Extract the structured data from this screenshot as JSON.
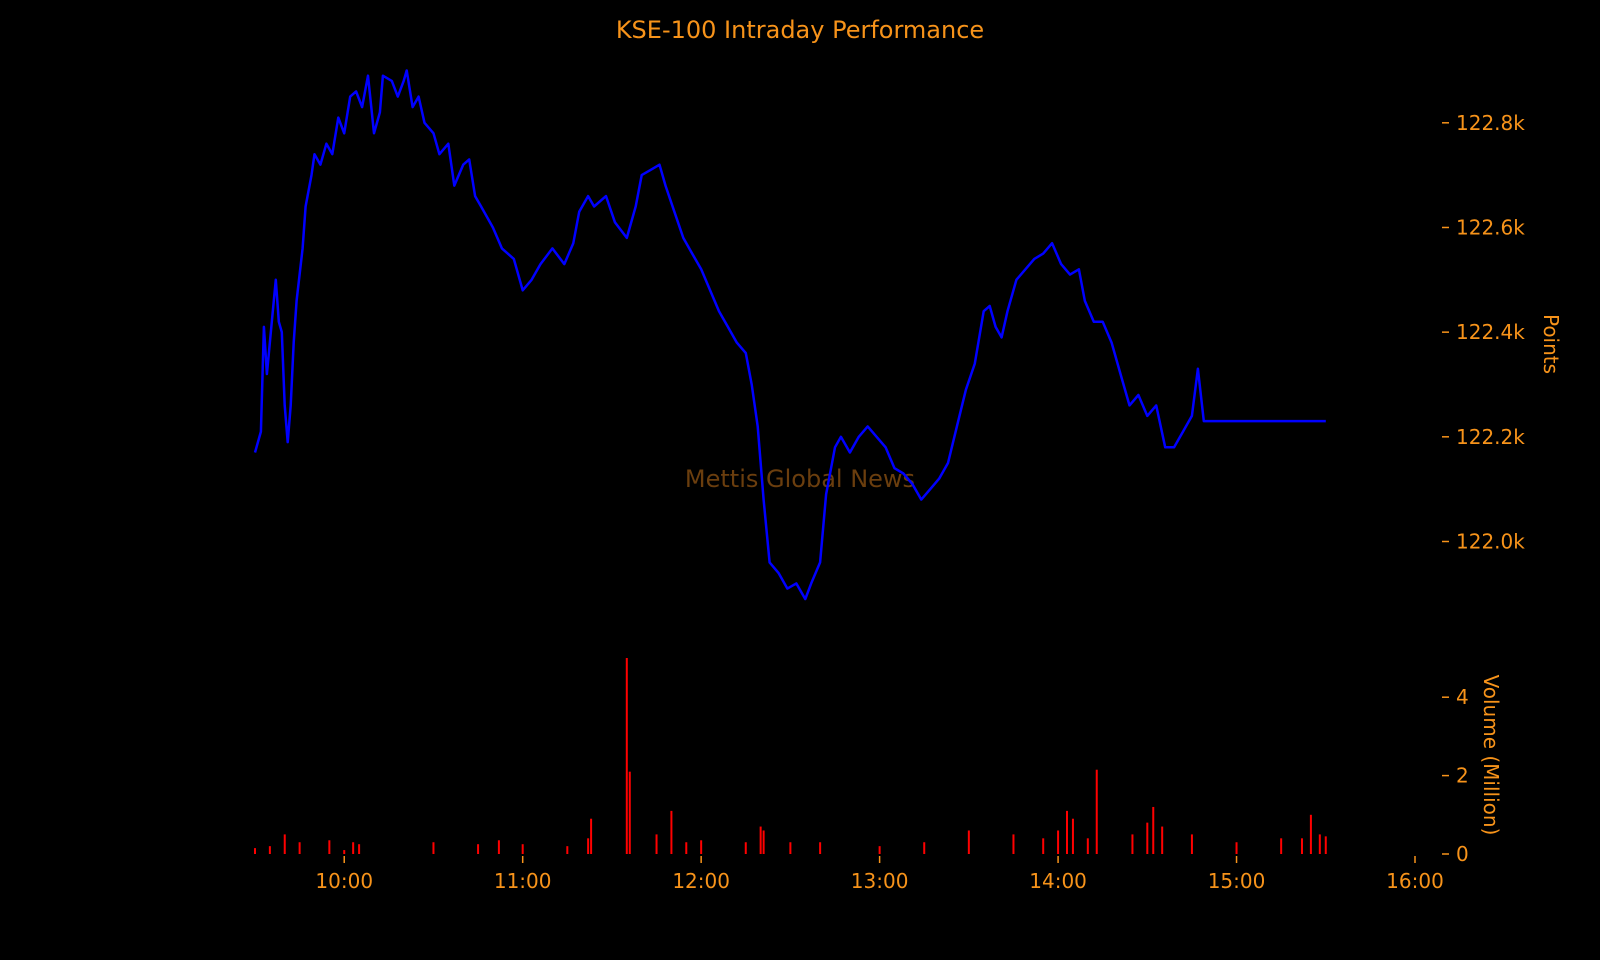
{
  "chart_data": [
    {
      "type": "line",
      "title": "KSE-100 Intraday Performance",
      "watermark": "Mettis Global News",
      "ylabel": "Points",
      "x_ticks": [
        "10:00",
        "11:00",
        "12:00",
        "13:00",
        "14:00",
        "15:00",
        "16:00"
      ],
      "xlim": [
        "09:30",
        "16:00"
      ],
      "ylim": [
        121850,
        122920
      ],
      "y_ticks": [
        122000,
        122200,
        122400,
        122600,
        122800
      ],
      "y_tick_labels": [
        "122.0k",
        "122.2k",
        "122.4k",
        "122.6k",
        "122.8k"
      ],
      "grid": false,
      "series": [
        {
          "color": "#0000ff",
          "points": [
            [
              "09:30",
              122170
            ],
            [
              "09:32",
              122210
            ],
            [
              "09:33",
              122410
            ],
            [
              "09:34",
              122320
            ],
            [
              "09:36",
              122440
            ],
            [
              "09:37",
              122500
            ],
            [
              "09:38",
              122420
            ],
            [
              "09:39",
              122400
            ],
            [
              "09:40",
              122260
            ],
            [
              "09:41",
              122190
            ],
            [
              "09:42",
              122260
            ],
            [
              "09:43",
              122380
            ],
            [
              "09:44",
              122460
            ],
            [
              "09:46",
              122560
            ],
            [
              "09:47",
              122640
            ],
            [
              "09:49",
              122700
            ],
            [
              "09:50",
              122740
            ],
            [
              "09:52",
              122720
            ],
            [
              "09:54",
              122760
            ],
            [
              "09:56",
              122740
            ],
            [
              "09:58",
              122810
            ],
            [
              "10:00",
              122780
            ],
            [
              "10:02",
              122850
            ],
            [
              "10:04",
              122860
            ],
            [
              "10:06",
              122830
            ],
            [
              "10:08",
              122890
            ],
            [
              "10:10",
              122780
            ],
            [
              "10:12",
              122820
            ],
            [
              "10:13",
              122890
            ],
            [
              "10:16",
              122880
            ],
            [
              "10:18",
              122850
            ],
            [
              "10:20",
              122880
            ],
            [
              "10:21",
              122900
            ],
            [
              "10:23",
              122830
            ],
            [
              "10:25",
              122850
            ],
            [
              "10:27",
              122800
            ],
            [
              "10:30",
              122780
            ],
            [
              "10:32",
              122740
            ],
            [
              "10:35",
              122760
            ],
            [
              "10:37",
              122680
            ],
            [
              "10:40",
              122720
            ],
            [
              "10:42",
              122730
            ],
            [
              "10:44",
              122660
            ],
            [
              "10:46",
              122640
            ],
            [
              "10:50",
              122600
            ],
            [
              "10:53",
              122560
            ],
            [
              "10:57",
              122540
            ],
            [
              "11:00",
              122480
            ],
            [
              "11:03",
              122500
            ],
            [
              "11:06",
              122530
            ],
            [
              "11:10",
              122560
            ],
            [
              "11:14",
              122530
            ],
            [
              "11:17",
              122570
            ],
            [
              "11:19",
              122630
            ],
            [
              "11:22",
              122660
            ],
            [
              "11:24",
              122640
            ],
            [
              "11:28",
              122660
            ],
            [
              "11:31",
              122610
            ],
            [
              "11:35",
              122580
            ],
            [
              "11:38",
              122640
            ],
            [
              "11:40",
              122700
            ],
            [
              "11:43",
              122710
            ],
            [
              "11:46",
              122720
            ],
            [
              "11:48",
              122680
            ],
            [
              "11:51",
              122630
            ],
            [
              "11:54",
              122580
            ],
            [
              "11:57",
              122550
            ],
            [
              "12:00",
              122520
            ],
            [
              "12:03",
              122480
            ],
            [
              "12:06",
              122440
            ],
            [
              "12:09",
              122410
            ],
            [
              "12:12",
              122380
            ],
            [
              "12:15",
              122360
            ],
            [
              "12:17",
              122300
            ],
            [
              "12:19",
              122220
            ],
            [
              "12:21",
              122080
            ],
            [
              "12:23",
              121960
            ],
            [
              "12:26",
              121940
            ],
            [
              "12:29",
              121910
            ],
            [
              "12:32",
              121920
            ],
            [
              "12:35",
              121890
            ],
            [
              "12:37",
              121920
            ],
            [
              "12:40",
              121960
            ],
            [
              "12:42",
              122090
            ],
            [
              "12:45",
              122180
            ],
            [
              "12:47",
              122200
            ],
            [
              "12:50",
              122170
            ],
            [
              "12:53",
              122200
            ],
            [
              "12:56",
              122220
            ],
            [
              "12:59",
              122200
            ],
            [
              "13:02",
              122180
            ],
            [
              "13:05",
              122140
            ],
            [
              "13:08",
              122130
            ],
            [
              "13:11",
              122110
            ],
            [
              "13:14",
              122080
            ],
            [
              "13:17",
              122100
            ],
            [
              "13:20",
              122120
            ],
            [
              "13:23",
              122150
            ],
            [
              "13:26",
              122220
            ],
            [
              "13:29",
              122290
            ],
            [
              "13:32",
              122340
            ],
            [
              "13:35",
              122440
            ],
            [
              "13:37",
              122450
            ],
            [
              "13:39",
              122410
            ],
            [
              "13:41",
              122390
            ],
            [
              "13:43",
              122440
            ],
            [
              "13:46",
              122500
            ],
            [
              "13:49",
              122520
            ],
            [
              "13:52",
              122540
            ],
            [
              "13:55",
              122550
            ],
            [
              "13:58",
              122570
            ],
            [
              "14:01",
              122530
            ],
            [
              "14:04",
              122510
            ],
            [
              "14:07",
              122520
            ],
            [
              "14:09",
              122460
            ],
            [
              "14:12",
              122420
            ],
            [
              "14:15",
              122420
            ],
            [
              "14:18",
              122380
            ],
            [
              "14:21",
              122320
            ],
            [
              "14:24",
              122260
            ],
            [
              "14:27",
              122280
            ],
            [
              "14:30",
              122240
            ],
            [
              "14:33",
              122260
            ],
            [
              "14:36",
              122180
            ],
            [
              "14:39",
              122180
            ],
            [
              "14:42",
              122210
            ],
            [
              "14:45",
              122240
            ],
            [
              "14:47",
              122330
            ],
            [
              "14:49",
              122230
            ],
            [
              "15:00",
              122230
            ],
            [
              "15:15",
              122230
            ],
            [
              "15:30",
              122230
            ]
          ]
        }
      ]
    },
    {
      "type": "bar",
      "ylabel": "Volume (Million)",
      "ylim": [
        0,
        5
      ],
      "y_ticks": [
        0,
        2,
        4
      ],
      "y_tick_labels": [
        "0",
        "2",
        "4"
      ],
      "grid": false,
      "series": [
        {
          "color": "#ff0000",
          "points": [
            [
              "09:30",
              0.15
            ],
            [
              "09:35",
              0.2
            ],
            [
              "09:40",
              0.5
            ],
            [
              "09:45",
              0.3
            ],
            [
              "09:55",
              0.35
            ],
            [
              "10:00",
              0.1
            ],
            [
              "10:03",
              0.3
            ],
            [
              "10:05",
              0.25
            ],
            [
              "10:30",
              0.3
            ],
            [
              "10:45",
              0.25
            ],
            [
              "10:52",
              0.35
            ],
            [
              "11:00",
              0.25
            ],
            [
              "11:15",
              0.2
            ],
            [
              "11:22",
              0.4
            ],
            [
              "11:23",
              0.9
            ],
            [
              "11:35",
              5.0
            ],
            [
              "11:36",
              2.1
            ],
            [
              "11:45",
              0.5
            ],
            [
              "11:50",
              1.1
            ],
            [
              "11:55",
              0.3
            ],
            [
              "12:00",
              0.35
            ],
            [
              "12:15",
              0.3
            ],
            [
              "12:20",
              0.7
            ],
            [
              "12:21",
              0.6
            ],
            [
              "12:30",
              0.3
            ],
            [
              "12:40",
              0.3
            ],
            [
              "13:00",
              0.2
            ],
            [
              "13:15",
              0.3
            ],
            [
              "13:30",
              0.6
            ],
            [
              "13:45",
              0.5
            ],
            [
              "13:55",
              0.4
            ],
            [
              "14:00",
              0.6
            ],
            [
              "14:03",
              1.1
            ],
            [
              "14:05",
              0.9
            ],
            [
              "14:10",
              0.4
            ],
            [
              "14:13",
              2.15
            ],
            [
              "14:25",
              0.5
            ],
            [
              "14:30",
              0.8
            ],
            [
              "14:32",
              1.2
            ],
            [
              "14:35",
              0.7
            ],
            [
              "14:45",
              0.5
            ],
            [
              "15:00",
              0.3
            ],
            [
              "15:15",
              0.4
            ],
            [
              "15:22",
              0.4
            ],
            [
              "15:25",
              1.0
            ],
            [
              "15:28",
              0.5
            ],
            [
              "15:30",
              0.45
            ]
          ]
        }
      ]
    }
  ],
  "colors": {
    "background": "#000000",
    "text": "#f7931a",
    "line": "#0000ff",
    "volume": "#ff0000",
    "watermark": "#6b3e0e"
  }
}
